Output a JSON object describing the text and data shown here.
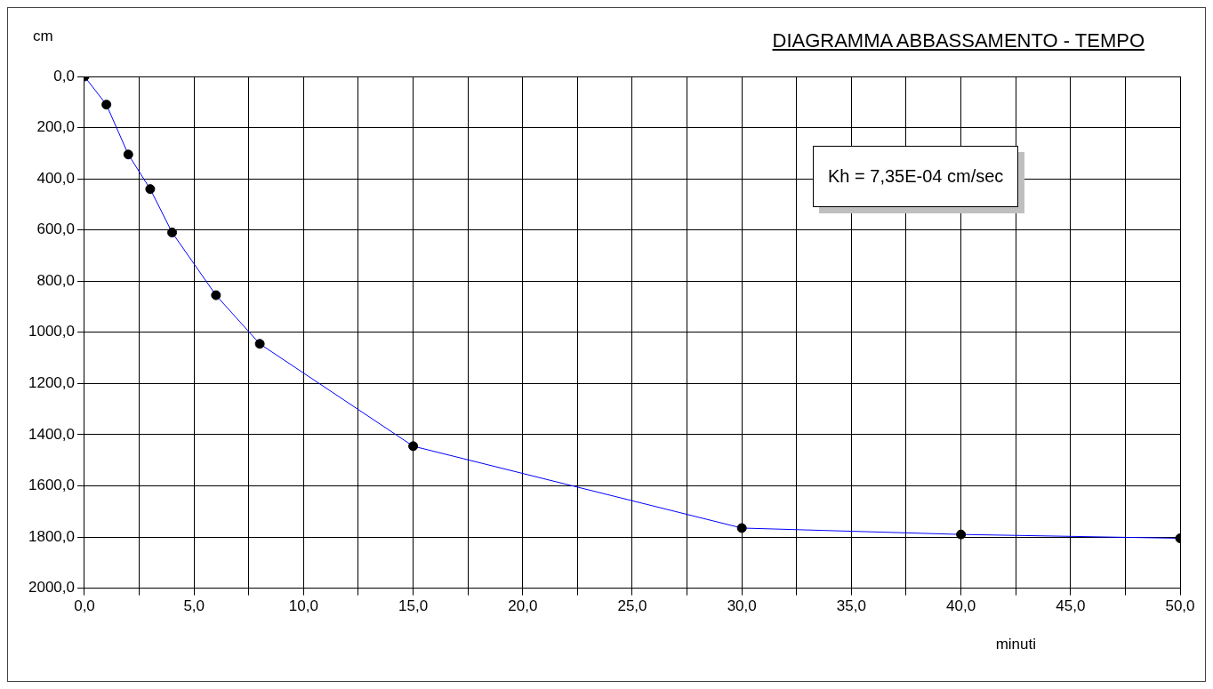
{
  "chart_data": {
    "type": "line",
    "title": "DIAGRAMMA   ABBASSAMENTO - TEMPO",
    "xlabel": "minuti",
    "ylabel": "cm",
    "annotations": [
      "Kh = 7,35E-04 cm/sec"
    ],
    "x": [
      0,
      1,
      2,
      3,
      4,
      6,
      8,
      15,
      30,
      40,
      50
    ],
    "series": [
      {
        "color": "#0000ff",
        "values": [
          0,
          110,
          305,
          440,
          610,
          855,
          1045,
          1445,
          1765,
          1790,
          1805
        ]
      }
    ],
    "marker": "circle",
    "line_style": "solid",
    "grid": true,
    "legend": false,
    "xlim": [
      0,
      50
    ],
    "xticks": [
      {
        "value": 0,
        "label": "0,0"
      },
      {
        "value": 2.5,
        "label": null
      },
      {
        "value": 5,
        "label": "5,0"
      },
      {
        "value": 7.5,
        "label": null
      },
      {
        "value": 10,
        "label": "10,0"
      },
      {
        "value": 12.5,
        "label": null
      },
      {
        "value": 15,
        "label": "15,0"
      },
      {
        "value": 17.5,
        "label": null
      },
      {
        "value": 20,
        "label": "20,0"
      },
      {
        "value": 22.5,
        "label": null
      },
      {
        "value": 25,
        "label": "25,0"
      },
      {
        "value": 27.5,
        "label": null
      },
      {
        "value": 30,
        "label": "30,0"
      },
      {
        "value": 32.5,
        "label": null
      },
      {
        "value": 35,
        "label": "35,0"
      },
      {
        "value": 37.5,
        "label": null
      },
      {
        "value": 40,
        "label": "40,0"
      },
      {
        "value": 42.5,
        "label": null
      },
      {
        "value": 45,
        "label": "45,0"
      },
      {
        "value": 47.5,
        "label": null
      },
      {
        "value": 50,
        "label": "50,0"
      }
    ],
    "ylim": [
      2000,
      0
    ],
    "yticks": [
      {
        "value": 0,
        "label": "0,0"
      },
      {
        "value": 200,
        "label": "200,0"
      },
      {
        "value": 400,
        "label": "400,0"
      },
      {
        "value": 600,
        "label": "600,0"
      },
      {
        "value": 800,
        "label": "800,0"
      },
      {
        "value": 1000,
        "label": "1000,0"
      },
      {
        "value": 1200,
        "label": "1200,0"
      },
      {
        "value": 1400,
        "label": "1400,0"
      },
      {
        "value": 1600,
        "label": "1600,0"
      },
      {
        "value": 1800,
        "label": "1800,0"
      },
      {
        "value": 2000,
        "label": "2000,0"
      }
    ]
  }
}
